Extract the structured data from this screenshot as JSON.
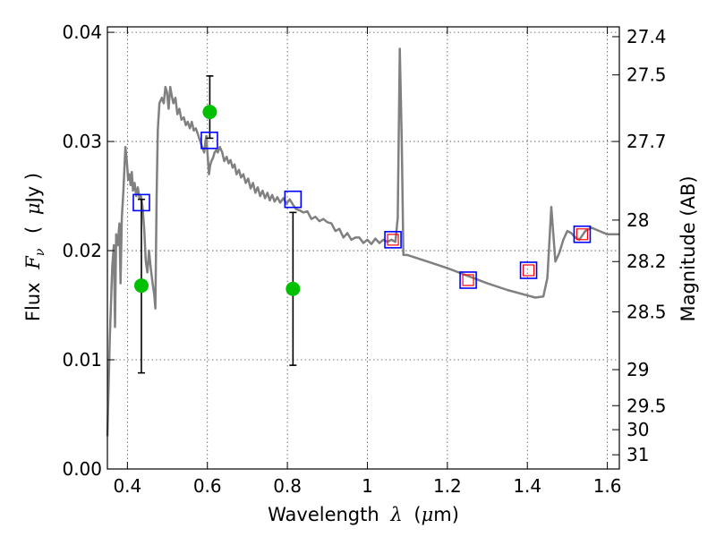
{
  "chart_data": {
    "type": "line",
    "xlabel": "Wavelength",
    "xlabel_symbol": "λ",
    "xlabel_unit_open": "(",
    "xlabel_unit_mu": "μ",
    "xlabel_unit_rest": "m)",
    "ylabel": "Flux",
    "ylabel_symbol": "F",
    "ylabel_sub": "ν",
    "ylabel_unit_open": "(",
    "ylabel_unit_mu": "μ",
    "ylabel_unit_rest": "Jy )",
    "y2label": "Magnitude (AB)",
    "xlim": [
      0.35,
      1.63
    ],
    "ylim": [
      0.0,
      0.0405
    ],
    "grid": true,
    "x_ticks": [
      0.4,
      0.6,
      0.8,
      1.0,
      1.2,
      1.4,
      1.6
    ],
    "x_tick_labels": [
      "0.4",
      "0.6",
      "0.8",
      "1",
      "1.2",
      "1.4",
      "1.6"
    ],
    "y_ticks": [
      0.0,
      0.01,
      0.02,
      0.03,
      0.04
    ],
    "y_tick_labels": [
      "0.00",
      "0.01",
      "0.02",
      "0.03",
      "0.04"
    ],
    "y2_ticks": [
      {
        "label": "27.4",
        "flux": 0.0396
      },
      {
        "label": "27.5",
        "flux": 0.0361
      },
      {
        "label": "27.7",
        "flux": 0.03
      },
      {
        "label": "28",
        "flux": 0.0228
      },
      {
        "label": "28.2",
        "flux": 0.019
      },
      {
        "label": "28.5",
        "flux": 0.0144
      },
      {
        "label": "29",
        "flux": 0.0091
      },
      {
        "label": "29.5",
        "flux": 0.0058
      },
      {
        "label": "30",
        "flux": 0.0036
      },
      {
        "label": "31",
        "flux": 0.0013
      }
    ],
    "series": [
      {
        "kind": "model_spectrum",
        "color": "#808080",
        "points": [
          [
            0.35,
            0.003
          ],
          [
            0.356,
            0.012
          ],
          [
            0.362,
            0.0185
          ],
          [
            0.366,
            0.0205
          ],
          [
            0.369,
            0.013
          ],
          [
            0.372,
            0.0215
          ],
          [
            0.376,
            0.0205
          ],
          [
            0.38,
            0.0225
          ],
          [
            0.383,
            0.017
          ],
          [
            0.386,
            0.023
          ],
          [
            0.39,
            0.0255
          ],
          [
            0.395,
            0.0295
          ],
          [
            0.399,
            0.028
          ],
          [
            0.402,
            0.0265
          ],
          [
            0.405,
            0.027
          ],
          [
            0.408,
            0.026
          ],
          [
            0.411,
            0.0272
          ],
          [
            0.414,
            0.0255
          ],
          [
            0.418,
            0.0262
          ],
          [
            0.422,
            0.025
          ],
          [
            0.426,
            0.0258
          ],
          [
            0.43,
            0.0248
          ],
          [
            0.434,
            0.025
          ],
          [
            0.438,
            0.024
          ],
          [
            0.442,
            0.022
          ],
          [
            0.446,
            0.019
          ],
          [
            0.45,
            0.018
          ],
          [
            0.454,
            0.02
          ],
          [
            0.458,
            0.0185
          ],
          [
            0.463,
            0.017
          ],
          [
            0.467,
            0.016
          ],
          [
            0.47,
            0.0147
          ],
          [
            0.473,
            0.025
          ],
          [
            0.476,
            0.031
          ],
          [
            0.48,
            0.0335
          ],
          [
            0.486,
            0.034
          ],
          [
            0.491,
            0.0335
          ],
          [
            0.495,
            0.035
          ],
          [
            0.499,
            0.0345
          ],
          [
            0.503,
            0.033
          ],
          [
            0.507,
            0.035
          ],
          [
            0.511,
            0.0342
          ],
          [
            0.515,
            0.0335
          ],
          [
            0.52,
            0.034
          ],
          [
            0.525,
            0.0325
          ],
          [
            0.53,
            0.033
          ],
          [
            0.535,
            0.032
          ],
          [
            0.541,
            0.0322
          ],
          [
            0.546,
            0.0315
          ],
          [
            0.551,
            0.0318
          ],
          [
            0.556,
            0.0312
          ],
          [
            0.561,
            0.0318
          ],
          [
            0.566,
            0.031
          ],
          [
            0.571,
            0.0312
          ],
          [
            0.576,
            0.0307
          ],
          [
            0.582,
            0.03
          ],
          [
            0.587,
            0.0295
          ],
          [
            0.592,
            0.029
          ],
          [
            0.597,
            0.0305
          ],
          [
            0.601,
            0.0285
          ],
          [
            0.604,
            0.027
          ],
          [
            0.607,
            0.0278
          ],
          [
            0.61,
            0.0282
          ],
          [
            0.614,
            0.0285
          ],
          [
            0.618,
            0.029
          ],
          [
            0.622,
            0.0292
          ],
          [
            0.626,
            0.029
          ],
          [
            0.631,
            0.0295
          ],
          [
            0.637,
            0.029
          ],
          [
            0.642,
            0.0282
          ],
          [
            0.648,
            0.0286
          ],
          [
            0.653,
            0.028
          ],
          [
            0.658,
            0.0283
          ],
          [
            0.663,
            0.0276
          ],
          [
            0.668,
            0.0279
          ],
          [
            0.673,
            0.027
          ],
          [
            0.679,
            0.0274
          ],
          [
            0.684,
            0.0267
          ],
          [
            0.69,
            0.027
          ],
          [
            0.696,
            0.0262
          ],
          [
            0.702,
            0.0266
          ],
          [
            0.708,
            0.0257
          ],
          [
            0.714,
            0.0262
          ],
          [
            0.72,
            0.0253
          ],
          [
            0.726,
            0.0258
          ],
          [
            0.732,
            0.025
          ],
          [
            0.738,
            0.0255
          ],
          [
            0.744,
            0.0248
          ],
          [
            0.75,
            0.0253
          ],
          [
            0.756,
            0.0246
          ],
          [
            0.762,
            0.0251
          ],
          [
            0.768,
            0.0245
          ],
          [
            0.775,
            0.0249
          ],
          [
            0.782,
            0.0244
          ],
          [
            0.79,
            0.0248
          ],
          [
            0.798,
            0.0243
          ],
          [
            0.806,
            0.0247
          ],
          [
            0.814,
            0.0242
          ],
          [
            0.822,
            0.0238
          ],
          [
            0.83,
            0.0237
          ],
          [
            0.84,
            0.0235
          ],
          [
            0.85,
            0.0236
          ],
          [
            0.86,
            0.0229
          ],
          [
            0.87,
            0.0231
          ],
          [
            0.88,
            0.0227
          ],
          [
            0.89,
            0.0229
          ],
          [
            0.9,
            0.0226
          ],
          [
            0.91,
            0.0225
          ],
          [
            0.92,
            0.0218
          ],
          [
            0.93,
            0.022
          ],
          [
            0.94,
            0.0212
          ],
          [
            0.95,
            0.0216
          ],
          [
            0.96,
            0.021
          ],
          [
            0.97,
            0.0212
          ],
          [
            0.98,
            0.0212
          ],
          [
            0.99,
            0.0207
          ],
          [
            1.0,
            0.021
          ],
          [
            1.01,
            0.0206
          ],
          [
            1.02,
            0.0211
          ],
          [
            1.03,
            0.0207
          ],
          [
            1.04,
            0.021
          ],
          [
            1.05,
            0.0208
          ],
          [
            1.06,
            0.021
          ],
          [
            1.07,
            0.0208
          ],
          [
            1.076,
            0.023
          ],
          [
            1.081,
            0.0385
          ],
          [
            1.086,
            0.03
          ],
          [
            1.09,
            0.0196
          ],
          [
            1.1,
            0.0196
          ],
          [
            1.15,
            0.019
          ],
          [
            1.2,
            0.0184
          ],
          [
            1.25,
            0.0177
          ],
          [
            1.3,
            0.017
          ],
          [
            1.35,
            0.0164
          ],
          [
            1.4,
            0.0159
          ],
          [
            1.42,
            0.0157
          ],
          [
            1.44,
            0.0158
          ],
          [
            1.45,
            0.0175
          ],
          [
            1.46,
            0.024
          ],
          [
            1.47,
            0.019
          ],
          [
            1.48,
            0.0198
          ],
          [
            1.49,
            0.021
          ],
          [
            1.5,
            0.0218
          ],
          [
            1.51,
            0.0216
          ],
          [
            1.52,
            0.0212
          ],
          [
            1.53,
            0.021
          ],
          [
            1.545,
            0.0218
          ],
          [
            1.56,
            0.0221
          ],
          [
            1.58,
            0.0218
          ],
          [
            1.6,
            0.0215
          ],
          [
            1.63,
            0.0215
          ]
        ]
      },
      {
        "kind": "model_photometry",
        "marker": "square",
        "color": "#0000ff",
        "points": [
          [
            0.435,
            0.0244
          ],
          [
            0.605,
            0.0301
          ],
          [
            0.814,
            0.0247
          ],
          [
            1.064,
            0.021
          ],
          [
            1.252,
            0.0173
          ],
          [
            1.403,
            0.0182
          ],
          [
            1.537,
            0.0215
          ]
        ]
      },
      {
        "kind": "observed_photometry",
        "marker": "square",
        "color": "#ff0000",
        "points": [
          [
            1.064,
            0.021
          ],
          [
            1.252,
            0.0173
          ],
          [
            1.403,
            0.0182
          ],
          [
            1.537,
            0.0215
          ]
        ]
      },
      {
        "kind": "observed_photometry",
        "marker": "circle",
        "color": "#00c000",
        "points": [
          {
            "x": 0.435,
            "y": 0.0168,
            "err_low": 0.0088,
            "err_high": 0.0247
          },
          {
            "x": 0.606,
            "y": 0.0327,
            "err_low": 0.0303,
            "err_high": 0.036
          },
          {
            "x": 0.814,
            "y": 0.0165,
            "err_low": 0.0095,
            "err_high": 0.0235
          }
        ]
      }
    ]
  }
}
